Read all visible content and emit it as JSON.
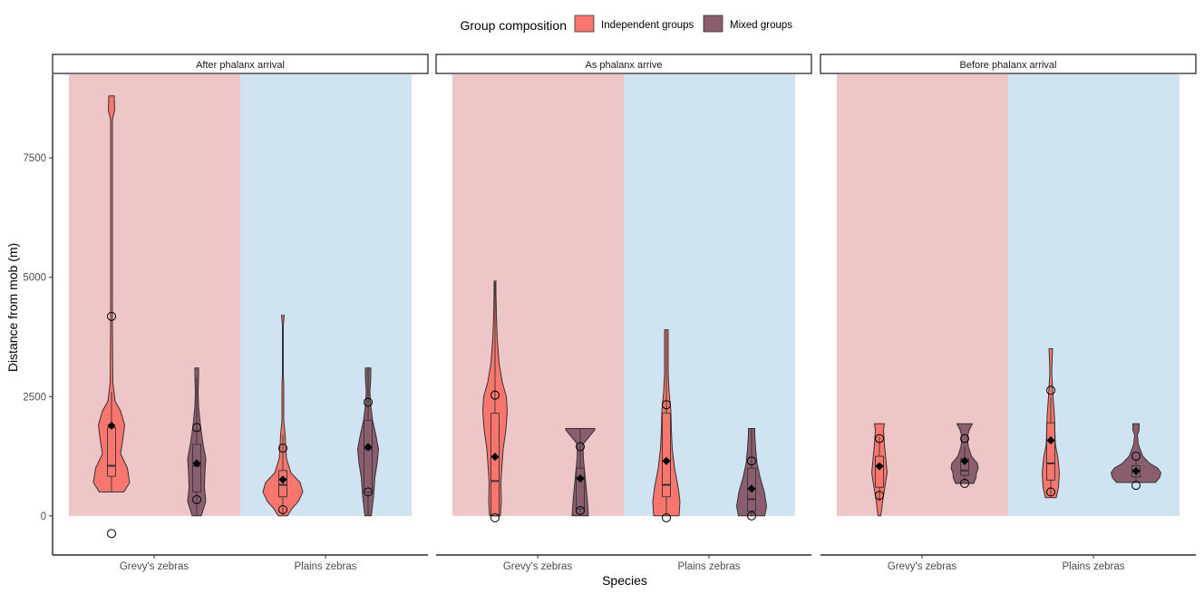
{
  "colors": {
    "independent": "#F8766D",
    "mixed": "#8A5E6E",
    "grevy_bg": "#EEC6C7",
    "plains_bg": "#CFE4F0"
  },
  "legend": {
    "title": "Group composition",
    "items": [
      "Independent groups",
      "Mixed groups"
    ]
  },
  "axes": {
    "xlabel": "Species",
    "ylabel": "Distance from mob (m)",
    "yticks": [
      "0",
      "2500",
      "5000",
      "7500"
    ]
  },
  "chart_data": {
    "type": "violin",
    "ylim": [
      -820,
      9250
    ],
    "yticks": [
      0,
      2500,
      5000,
      7500
    ],
    "categories": [
      "Grevy's zebras",
      "Plains zebras"
    ],
    "groups": [
      "Independent groups",
      "Mixed groups"
    ],
    "legend_position": "top",
    "grid": false,
    "panels": [
      {
        "title": "After phalanx arrival",
        "violins": [
          {
            "species": "Grevy's zebras",
            "group": "Independent groups",
            "profile": [
              [
                500,
                0.27
              ],
              [
                700,
                0.4
              ],
              [
                1000,
                0.35
              ],
              [
                1300,
                0.2
              ],
              [
                1600,
                0.25
              ],
              [
                1900,
                0.29
              ],
              [
                2200,
                0.2
              ],
              [
                2400,
                0.08
              ],
              [
                2800,
                0.03
              ],
              [
                4000,
                0.02
              ],
              [
                6000,
                0.02
              ],
              [
                7500,
                0.02
              ],
              [
                8300,
                0.02
              ],
              [
                8500,
                0.07
              ],
              [
                8800,
                0.06
              ]
            ],
            "box": {
              "q1": 830,
              "median": 1050,
              "q3": 1850,
              "wlow": 500,
              "whigh": 2600
            },
            "mean": 1890,
            "points": [
              4180,
              -370
            ]
          },
          {
            "species": "Grevy's zebras",
            "group": "Mixed groups",
            "profile": [
              [
                0,
                0.1
              ],
              [
                300,
                0.2
              ],
              [
                600,
                0.17
              ],
              [
                900,
                0.18
              ],
              [
                1200,
                0.2
              ],
              [
                1500,
                0.14
              ],
              [
                1900,
                0.08
              ],
              [
                2300,
                0.04
              ],
              [
                2600,
                0.03
              ],
              [
                2900,
                0.04
              ],
              [
                3100,
                0.04
              ]
            ],
            "box": {
              "q1": 500,
              "median": 1050,
              "q3": 1500,
              "wlow": 0,
              "whigh": 2900
            },
            "mean": 1100,
            "points": [
              1850,
              340
            ]
          },
          {
            "species": "Plains zebras",
            "group": "Independent groups",
            "profile": [
              [
                0,
                0.1
              ],
              [
                150,
                0.2
              ],
              [
                300,
                0.34
              ],
              [
                500,
                0.44
              ],
              [
                700,
                0.38
              ],
              [
                900,
                0.18
              ],
              [
                1200,
                0.08
              ],
              [
                1500,
                0.06
              ],
              [
                1700,
                0.05
              ],
              [
                2000,
                0.02
              ],
              [
                2500,
                0.02
              ],
              [
                2700,
                0.02
              ],
              [
                3000,
                0.01
              ],
              [
                4000,
                0.01
              ],
              [
                4200,
                0.03
              ]
            ],
            "box": {
              "q1": 400,
              "median": 650,
              "q3": 950,
              "wlow": 0,
              "whigh": 1700
            },
            "mean": 760,
            "points": [
              1420,
              130
            ]
          },
          {
            "species": "Plains zebras",
            "group": "Mixed groups",
            "profile": [
              [
                0,
                0.07
              ],
              [
                400,
                0.12
              ],
              [
                800,
                0.15
              ],
              [
                1100,
                0.2
              ],
              [
                1400,
                0.23
              ],
              [
                1700,
                0.17
              ],
              [
                2000,
                0.1
              ],
              [
                2300,
                0.06
              ],
              [
                2600,
                0.04
              ],
              [
                2900,
                0.06
              ],
              [
                3100,
                0.06
              ]
            ],
            "box": {
              "q1": 500,
              "median": 1400,
              "q3": 2000,
              "wlow": 0,
              "whigh": 3100
            },
            "mean": 1440,
            "points": [
              2380,
              500
            ]
          }
        ]
      },
      {
        "title": "As phalanx arrive",
        "violins": [
          {
            "species": "Grevy's zebras",
            "group": "Independent groups",
            "profile": [
              [
                0,
                0.12
              ],
              [
                300,
                0.14
              ],
              [
                700,
                0.13
              ],
              [
                1000,
                0.15
              ],
              [
                1400,
                0.18
              ],
              [
                1800,
                0.24
              ],
              [
                2200,
                0.27
              ],
              [
                2500,
                0.25
              ],
              [
                2800,
                0.16
              ],
              [
                3200,
                0.09
              ],
              [
                3700,
                0.05
              ],
              [
                4200,
                0.03
              ],
              [
                4700,
                0.02
              ],
              [
                4920,
                0.02
              ]
            ],
            "box": {
              "q1": 0,
              "median": 730,
              "q3": 2150,
              "wlow": 0,
              "whigh": 4900
            },
            "mean": 1240,
            "points": [
              2530,
              -40
            ]
          },
          {
            "species": "Grevy's zebras",
            "group": "Mixed groups",
            "profile": [
              [
                0,
                0.18
              ],
              [
                300,
                0.16
              ],
              [
                600,
                0.13
              ],
              [
                900,
                0.1
              ],
              [
                1200,
                0.07
              ],
              [
                1500,
                0.06
              ],
              [
                1800,
                0.32
              ],
              [
                1830,
                0.32
              ]
            ],
            "box": {
              "q1": 150,
              "median": 800,
              "q3": 1000,
              "wlow": 0,
              "whigh": 1830
            },
            "mean": 780,
            "points": [
              1450,
              110
            ]
          },
          {
            "species": "Plains zebras",
            "group": "Independent groups",
            "profile": [
              [
                0,
                0.28
              ],
              [
                300,
                0.3
              ],
              [
                600,
                0.26
              ],
              [
                1000,
                0.18
              ],
              [
                1400,
                0.13
              ],
              [
                1800,
                0.11
              ],
              [
                2200,
                0.1
              ],
              [
                2600,
                0.06
              ],
              [
                3000,
                0.04
              ],
              [
                3500,
                0.04
              ],
              [
                3900,
                0.04
              ]
            ],
            "box": {
              "q1": 400,
              "median": 650,
              "q3": 2150,
              "wlow": 0,
              "whigh": 3900
            },
            "mean": 1150,
            "points": [
              2330,
              -40
            ]
          },
          {
            "species": "Plains zebras",
            "group": "Mixed groups",
            "profile": [
              [
                0,
                0.29
              ],
              [
                200,
                0.33
              ],
              [
                500,
                0.28
              ],
              [
                800,
                0.19
              ],
              [
                1100,
                0.12
              ],
              [
                1400,
                0.09
              ],
              [
                1700,
                0.07
              ],
              [
                1830,
                0.07
              ]
            ],
            "box": {
              "q1": 100,
              "median": 350,
              "q3": 1000,
              "wlow": 0,
              "whigh": 1830
            },
            "mean": 570,
            "points": [
              1150,
              0
            ]
          }
        ]
      },
      {
        "title": "Before phalanx arrival",
        "violins": [
          {
            "species": "Grevy's zebras",
            "group": "Independent groups",
            "profile": [
              [
                0,
                0.03
              ],
              [
                300,
                0.07
              ],
              [
                600,
                0.12
              ],
              [
                900,
                0.17
              ],
              [
                1200,
                0.14
              ],
              [
                1500,
                0.11
              ],
              [
                1800,
                0.09
              ],
              [
                1930,
                0.11
              ]
            ],
            "box": {
              "q1": 600,
              "median": 1050,
              "q3": 1250,
              "wlow": 300,
              "whigh": 1650
            },
            "mean": 1040,
            "points": [
              1620,
              430
            ]
          },
          {
            "species": "Grevy's zebras",
            "group": "Mixed groups",
            "profile": [
              [
                680,
                0.2
              ],
              [
                800,
                0.25
              ],
              [
                900,
                0.26
              ],
              [
                1000,
                0.3
              ],
              [
                1100,
                0.28
              ],
              [
                1250,
                0.15
              ],
              [
                1450,
                0.08
              ],
              [
                1650,
                0.06
              ],
              [
                1800,
                0.1
              ],
              [
                1930,
                0.17
              ]
            ],
            "box": {
              "q1": 850,
              "median": 950,
              "q3": 1200,
              "wlow": 700,
              "whigh": 1450
            },
            "mean": 1150,
            "points": [
              1620,
              680
            ]
          },
          {
            "species": "Plains zebras",
            "group": "Independent groups",
            "profile": [
              [
                380,
                0.12
              ],
              [
                600,
                0.17
              ],
              [
                900,
                0.19
              ],
              [
                1200,
                0.16
              ],
              [
                1500,
                0.1
              ],
              [
                1800,
                0.09
              ],
              [
                2100,
                0.08
              ],
              [
                2500,
                0.05
              ],
              [
                3000,
                0.02
              ],
              [
                3300,
                0.03
              ],
              [
                3500,
                0.04
              ]
            ],
            "box": {
              "q1": 750,
              "median": 1100,
              "q3": 1950,
              "wlow": 400,
              "whigh": 2500
            },
            "mean": 1580,
            "points": [
              2630,
              500
            ]
          },
          {
            "species": "Plains zebras",
            "group": "Mixed groups",
            "profile": [
              [
                700,
                0.43
              ],
              [
                800,
                0.52
              ],
              [
                900,
                0.55
              ],
              [
                1000,
                0.48
              ],
              [
                1100,
                0.3
              ],
              [
                1250,
                0.15
              ],
              [
                1500,
                0.05
              ],
              [
                1700,
                0.03
              ],
              [
                1800,
                0.07
              ],
              [
                1930,
                0.07
              ]
            ],
            "box": {
              "q1": 820,
              "median": 950,
              "q3": 1050,
              "wlow": 750,
              "whigh": 1200
            },
            "mean": 940,
            "points": [
              1250,
              640
            ]
          }
        ]
      }
    ]
  }
}
